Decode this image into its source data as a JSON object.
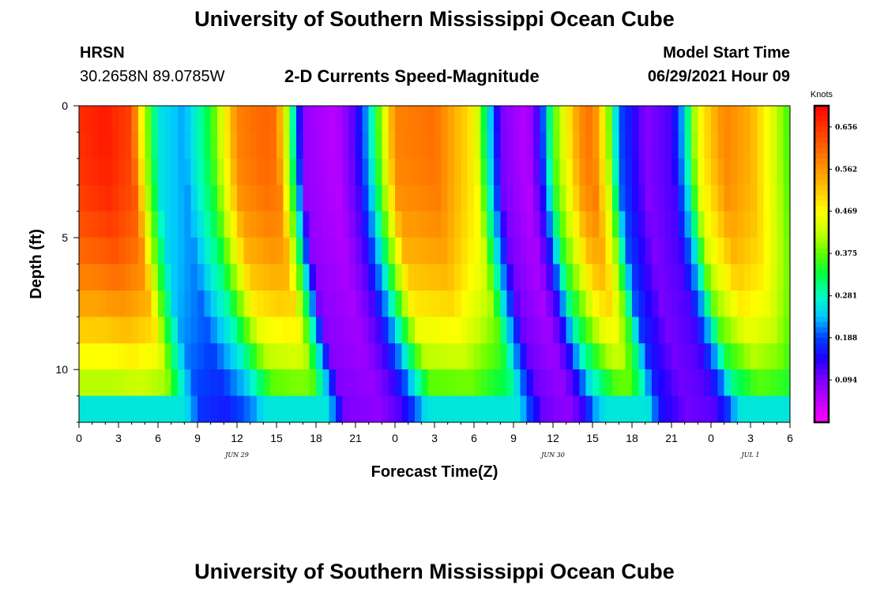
{
  "header": {
    "title": "University of Southern Mississippi Ocean Cube",
    "station": "HRSN",
    "coords": "30.2658N  89.0785W",
    "chart_title": "2-D Currents Speed-Magnitude",
    "model_label": "Model Start Time",
    "model_time": "06/29/2021 Hour 09"
  },
  "footer": {
    "title": "University of Southern Mississippi Ocean Cube"
  },
  "chart_data": {
    "type": "heatmap",
    "title": "2-D Currents Speed-Magnitude",
    "xlabel": "Forecast Time(Z)",
    "ylabel": "Depth (ft)",
    "x_ticks": [
      "0",
      "3",
      "6",
      "9",
      "12",
      "15",
      "18",
      "21",
      "0",
      "3",
      "6",
      "9",
      "12",
      "15",
      "18",
      "21",
      "0",
      "3",
      "6"
    ],
    "x_tick_hours": [
      0,
      3,
      6,
      9,
      12,
      15,
      18,
      21,
      24,
      27,
      30,
      33,
      36,
      39,
      42,
      45,
      48,
      51,
      54
    ],
    "x_range_hours": [
      0,
      54
    ],
    "date_labels": [
      {
        "text": "JUN 29",
        "hour": 12
      },
      {
        "text": "JUN 30",
        "hour": 36
      },
      {
        "text": "JUL 1",
        "hour": 51
      }
    ],
    "y_ticks": [
      "0",
      "5",
      "10"
    ],
    "y_tick_values": [
      0,
      5,
      10
    ],
    "y_range": [
      0,
      12
    ],
    "colorbar": {
      "units": "Knots",
      "min": 0.0,
      "max": 0.703,
      "labels": [
        "0.656",
        "0.562",
        "0.469",
        "0.375",
        "0.281",
        "0.188",
        "0.094"
      ],
      "label_values": [
        0.656,
        0.562,
        0.469,
        0.375,
        0.281,
        0.188,
        0.094
      ],
      "colors": [
        "#ff00ff",
        "#c000ff",
        "#8000ff",
        "#2000ff",
        "#0040ff",
        "#00c8ff",
        "#00ffc0",
        "#00ff40",
        "#60ff00",
        "#c8ff00",
        "#ffff00",
        "#ffc800",
        "#ff9600",
        "#ff6400",
        "#ff3200",
        "#ff0000"
      ]
    },
    "time_step_hours": 0.5,
    "depth_levels": 12,
    "surface_speed_knots_by_hour": [
      [
        0,
        0.66
      ],
      [
        2,
        0.68
      ],
      [
        4,
        0.64
      ],
      [
        5,
        0.42
      ],
      [
        6,
        0.26
      ],
      [
        8,
        0.22
      ],
      [
        10,
        0.34
      ],
      [
        12,
        0.58
      ],
      [
        14,
        0.61
      ],
      [
        15,
        0.6
      ],
      [
        16,
        0.36
      ],
      [
        17,
        0.08
      ],
      [
        19.5,
        0.05
      ],
      [
        21,
        0.12
      ],
      [
        22,
        0.24
      ],
      [
        24,
        0.58
      ],
      [
        27,
        0.6
      ],
      [
        30,
        0.48
      ],
      [
        31,
        0.28
      ],
      [
        32,
        0.1
      ],
      [
        34,
        0.05
      ],
      [
        35,
        0.14
      ],
      [
        36,
        0.36
      ],
      [
        38,
        0.57
      ],
      [
        39,
        0.6
      ],
      [
        40,
        0.45
      ],
      [
        41,
        0.2
      ],
      [
        43,
        0.09
      ],
      [
        45,
        0.12
      ],
      [
        46,
        0.25
      ],
      [
        47,
        0.46
      ],
      [
        49,
        0.58
      ],
      [
        51,
        0.54
      ],
      [
        53,
        0.42
      ],
      [
        54,
        0.35
      ]
    ]
  }
}
